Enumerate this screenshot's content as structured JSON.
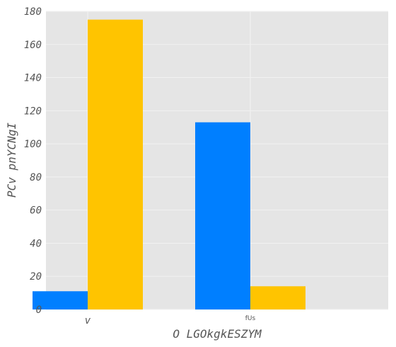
{
  "chart_data": {
    "type": "bar",
    "categories": [
      "v",
      "fUs"
    ],
    "series": [
      {
        "values": [
          11,
          113
        ],
        "color": "#007fff"
      },
      {
        "values": [
          175,
          14
        ],
        "color": "#ffc400"
      }
    ],
    "xlabel": "O  LGOkgkESZYM",
    "ylabel": "PCv pnYCNgI",
    "ylim": [
      0,
      180
    ],
    "yticks": [
      0,
      20,
      40,
      60,
      80,
      100,
      120,
      140,
      160,
      180
    ],
    "grid": true,
    "plot_background": "#e5e5e5",
    "grid_color": "#f2f2f2"
  }
}
